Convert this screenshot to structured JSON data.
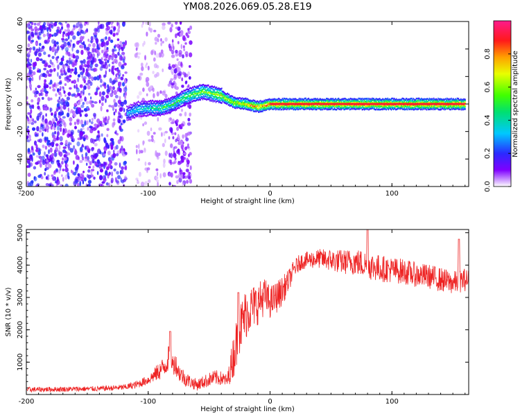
{
  "chart_data": [
    {
      "type": "heatmap",
      "title": "YM08.2026.069.05.28.E19",
      "xlabel": "Height of straight line (km)",
      "ylabel": "Frequency (Hz)",
      "xlim": [
        -200,
        163
      ],
      "ylim": [
        -60,
        60
      ],
      "xticks": [
        -200,
        -100,
        0,
        100
      ],
      "yticks": [
        -60,
        -40,
        -20,
        0,
        20,
        40,
        60
      ],
      "series": [
        {
          "name": "noise-scatter",
          "x_range": [
            -200,
            -118
          ],
          "note": "broadband speckle, amplitude 0.05-0.25"
        },
        {
          "name": "noise-column",
          "x_range": [
            -83,
            -65
          ],
          "note": "vertical speckle band"
        },
        {
          "name": "signal-ridge",
          "x": [
            -118,
            -110,
            -100,
            -90,
            -80,
            -70,
            -60,
            -55,
            -50,
            -40,
            -30,
            -20,
            -15,
            -10,
            0,
            160
          ],
          "freq": [
            -7,
            -4,
            -3,
            -3,
            0,
            5,
            8,
            9,
            8,
            6,
            1,
            0,
            -1,
            -2,
            0,
            0
          ],
          "amplitude": [
            0.3,
            0.4,
            0.4,
            0.5,
            0.5,
            0.55,
            0.6,
            0.6,
            0.6,
            0.7,
            0.7,
            0.8,
            0.85,
            0.85,
            0.9,
            0.9
          ]
        }
      ],
      "colorbar": {
        "label": "Normalized spectral amplitude",
        "range": [
          0,
          1
        ],
        "ticks": [
          "0.0",
          "0.2",
          "0.4",
          "0.6",
          "0.8"
        ]
      }
    },
    {
      "type": "line",
      "title": "",
      "xlabel": "Height of straight line (km)",
      "ylabel": "SNR (10 * v/v)",
      "xlim": [
        -200,
        163
      ],
      "ylim": [
        0,
        5100
      ],
      "xticks": [
        -200,
        -100,
        0,
        100
      ],
      "yticks": [
        1000,
        2000,
        3000,
        4000,
        5000
      ],
      "series": [
        {
          "name": "SNR",
          "color": "#ee2222",
          "x": [
            -200,
            -180,
            -160,
            -140,
            -120,
            -110,
            -100,
            -95,
            -90,
            -85,
            -82,
            -80,
            -78,
            -75,
            -70,
            -65,
            -60,
            -55,
            -50,
            -45,
            -40,
            -35,
            -30,
            -25,
            -20,
            -15,
            -10,
            -5,
            0,
            5,
            10,
            15,
            20,
            25,
            30,
            40,
            50,
            60,
            70,
            80,
            90,
            100,
            110,
            120,
            130,
            140,
            150,
            160,
            163
          ],
          "y": [
            150,
            160,
            170,
            180,
            220,
            300,
            450,
            600,
            750,
            950,
            1300,
            900,
            1000,
            700,
            500,
            380,
            300,
            380,
            460,
            520,
            500,
            420,
            1200,
            2000,
            2500,
            2700,
            2800,
            3050,
            2850,
            3000,
            3200,
            3500,
            3900,
            4100,
            4150,
            4200,
            4150,
            4100,
            4100,
            4000,
            3900,
            3850,
            3800,
            3700,
            3650,
            3550,
            3450,
            3550,
            3500
          ],
          "noise": [
            80,
            80,
            80,
            80,
            90,
            120,
            150,
            220,
            300,
            350,
            400,
            350,
            350,
            300,
            250,
            200,
            180,
            200,
            220,
            240,
            220,
            200,
            700,
            800,
            800,
            700,
            650,
            600,
            500,
            500,
            450,
            350,
            280,
            260,
            260,
            300,
            350,
            380,
            420,
            450,
            420,
            400,
            400,
            380,
            380,
            380,
            360,
            360,
            360
          ],
          "spikes": [
            {
              "x": -82,
              "y": 1950
            },
            {
              "x": -26,
              "y": 3150
            },
            {
              "x": 80,
              "y": 5100
            },
            {
              "x": 155,
              "y": 4800
            }
          ]
        }
      ]
    }
  ]
}
